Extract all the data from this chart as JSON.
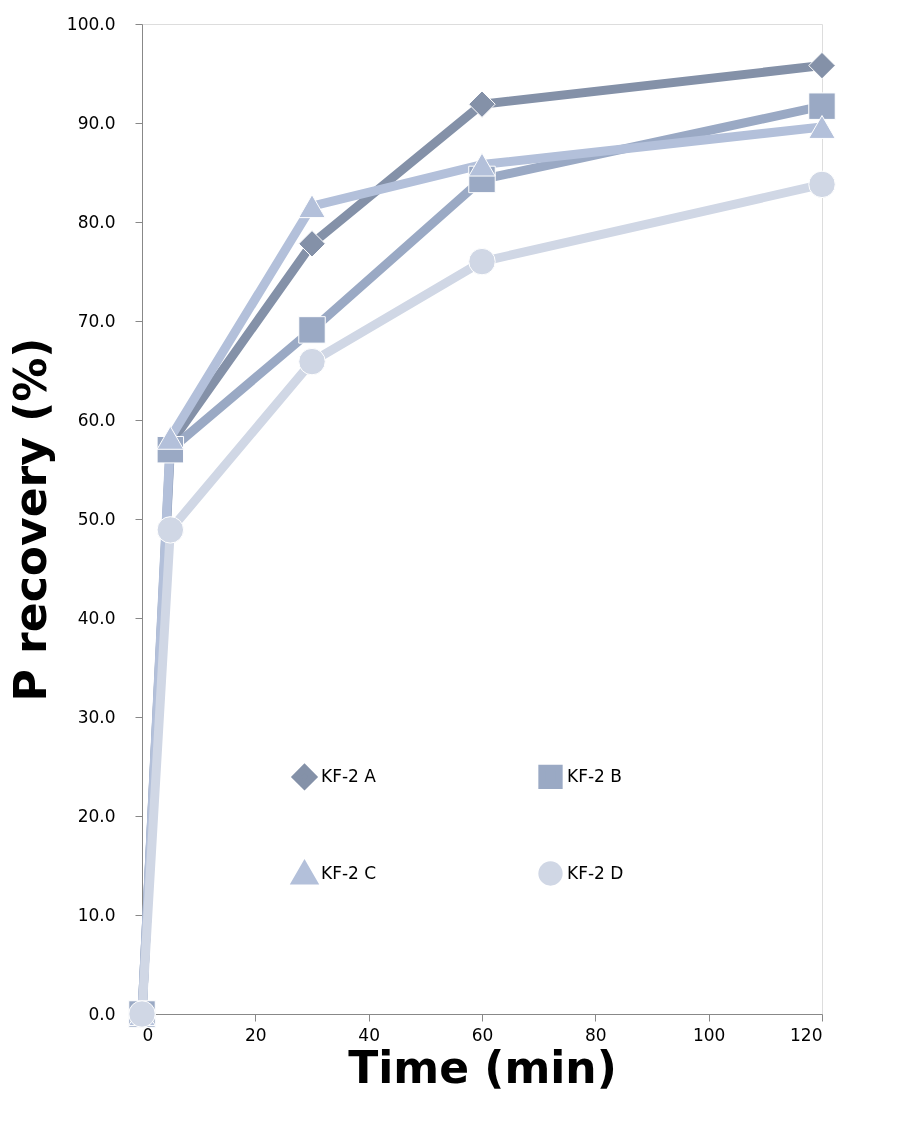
{
  "chart_data": {
    "type": "line",
    "xlabel": "Time (min)",
    "ylabel": "P recovery (%)",
    "x": [
      0,
      5,
      30,
      60,
      120
    ],
    "series": [
      {
        "name": "KF-2 A",
        "color": "#8491a8",
        "marker": "diamond",
        "values": [
          0,
          57.6,
          77.8,
          91.9,
          95.8
        ]
      },
      {
        "name": "KF-2 B",
        "color": "#9aa9c4",
        "marker": "square",
        "values": [
          0,
          57.0,
          69.1,
          84.3,
          91.7
        ]
      },
      {
        "name": "KF-2 C",
        "color": "#b3c0da",
        "marker": "triangle",
        "values": [
          0,
          58.2,
          81.6,
          85.8,
          89.6
        ]
      },
      {
        "name": "KF-2 D",
        "color": "#d0d7e5",
        "marker": "circle",
        "values": [
          0,
          48.9,
          65.9,
          76.0,
          83.8
        ]
      }
    ],
    "xlim": [
      0,
      120
    ],
    "xticks": [
      0,
      20,
      40,
      60,
      80,
      100,
      120
    ],
    "ylim": [
      0,
      100
    ],
    "yticks": [
      {
        "value": 0,
        "label": "0.0"
      },
      {
        "value": 10,
        "label": "10.0"
      },
      {
        "value": 20,
        "label": "20.0"
      },
      {
        "value": 30,
        "label": "30.0"
      },
      {
        "value": 40,
        "label": "40.0"
      },
      {
        "value": 50,
        "label": "50.0"
      },
      {
        "value": 60,
        "label": "60.0"
      },
      {
        "value": 70,
        "label": "70.0"
      },
      {
        "value": 80,
        "label": "80.0"
      },
      {
        "value": 90,
        "label": "90.0"
      },
      {
        "value": 100,
        "label": "100.0"
      }
    ],
    "grid": false,
    "legend": "bottom",
    "line_style": "solid"
  }
}
